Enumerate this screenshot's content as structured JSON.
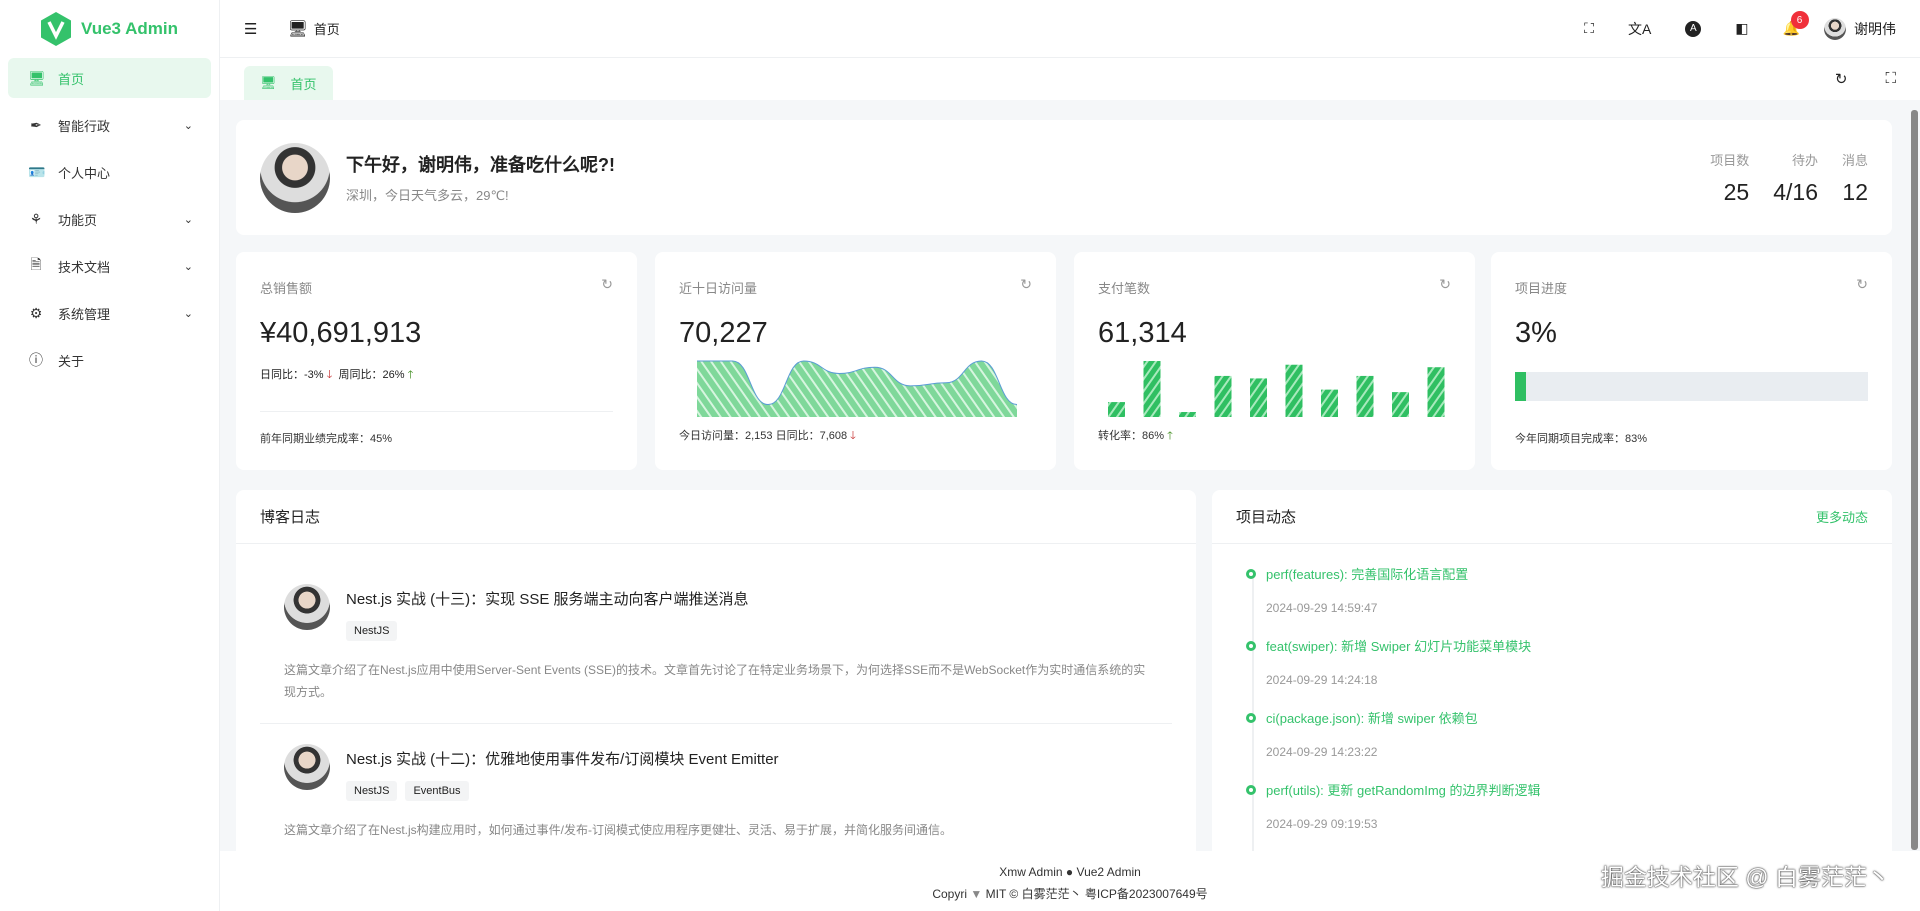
{
  "brand": {
    "name": "Vue3 Admin",
    "accent": "#34c26b"
  },
  "sidebar": {
    "items": [
      {
        "label": "首页",
        "icon": "monitor-icon",
        "active": true
      },
      {
        "label": "智能行政",
        "icon": "feather-icon",
        "expandable": true
      },
      {
        "label": "个人中心",
        "icon": "id-card-icon"
      },
      {
        "label": "功能页",
        "icon": "tulip-icon",
        "expandable": true
      },
      {
        "label": "技术文档",
        "icon": "document-icon",
        "expandable": true
      },
      {
        "label": "系统管理",
        "icon": "gear-icon",
        "expandable": true
      },
      {
        "label": "关于",
        "icon": "info-icon"
      }
    ]
  },
  "header": {
    "breadcrumb": "首页",
    "notifications": "6",
    "user": "谢明伟"
  },
  "tabs": [
    {
      "label": "首页"
    }
  ],
  "welcome": {
    "greeting": "下午好，谢明伟，准备吃什么呢?!",
    "weather": "深圳，今日天气多云，29℃!",
    "stats": [
      {
        "label": "项目数",
        "value": "25"
      },
      {
        "label": "待办",
        "value": "4/16"
      },
      {
        "label": "消息",
        "value": "12"
      }
    ]
  },
  "cards": {
    "sales": {
      "title": "总销售额",
      "value": "¥40,691,913",
      "day": "日同比：-3%",
      "week": "周同比：26%",
      "footer": "前年同期业绩完成率：45%"
    },
    "visits": {
      "title": "近十日访问量",
      "value": "70,227",
      "footer": "今日访问量：2,153  日同比：7,608"
    },
    "payments": {
      "title": "支付笔数",
      "value": "61,314",
      "footer": "转化率：86%"
    },
    "progress": {
      "title": "项目进度",
      "value": "3%",
      "progress_percent": 3,
      "footer": "今年同期项目完成率：83%"
    }
  },
  "chart_data": [
    {
      "type": "area",
      "values": [
        90,
        90,
        20,
        90,
        70,
        80,
        50,
        55,
        90,
        20
      ]
    },
    {
      "type": "bar",
      "values": [
        12,
        45,
        4,
        33,
        31,
        42,
        22,
        33,
        20,
        40
      ]
    }
  ],
  "blog": {
    "title": "博客日志",
    "posts": [
      {
        "title": "Nest.js 实战 (十三)：实现 SSE 服务端主动向客户端推送消息",
        "tags": [
          "NestJS"
        ],
        "desc": "这篇文章介绍了在Nest.js应用中使用Server-Sent Events (SSE)的技术。文章首先讨论了在特定业务场景下，为何选择SSE而不是WebSocket作为实时通信系统的实现方式。"
      },
      {
        "title": "Nest.js 实战 (十二)：优雅地使用事件发布/订阅模块 Event Emitter",
        "tags": [
          "NestJS",
          "EventBus"
        ],
        "desc": "这篇文章介绍了在Nest.js构建应用时，如何通过事件/发布-订阅模式使应用程序更健壮、灵活、易于扩展，并简化服务间通信。"
      }
    ]
  },
  "project": {
    "title": "项目动态",
    "more": "更多动态",
    "items": [
      {
        "msg": "perf(features): 完善国际化语言配置",
        "date": "2024-09-29 14:59:47"
      },
      {
        "msg": "feat(swiper): 新增 Swiper 幻灯片功能菜单模块",
        "date": "2024-09-29 14:24:18"
      },
      {
        "msg": "ci(package.json): 新增 swiper 依赖包",
        "date": "2024-09-29 14:23:22"
      },
      {
        "msg": "perf(utils): 更新 getRandomImg 的边界判断逻辑",
        "date": "2024-09-29 09:19:53"
      }
    ]
  },
  "footer": {
    "link1": "Xmw Admin",
    "link2": "Vue2 Admin",
    "copyright": "Copyri",
    "license": "MIT ©  白雾茫茫丶  粤ICP备2023007649号"
  },
  "watermark": "掘金技术社区 @ 白雾茫茫丶"
}
